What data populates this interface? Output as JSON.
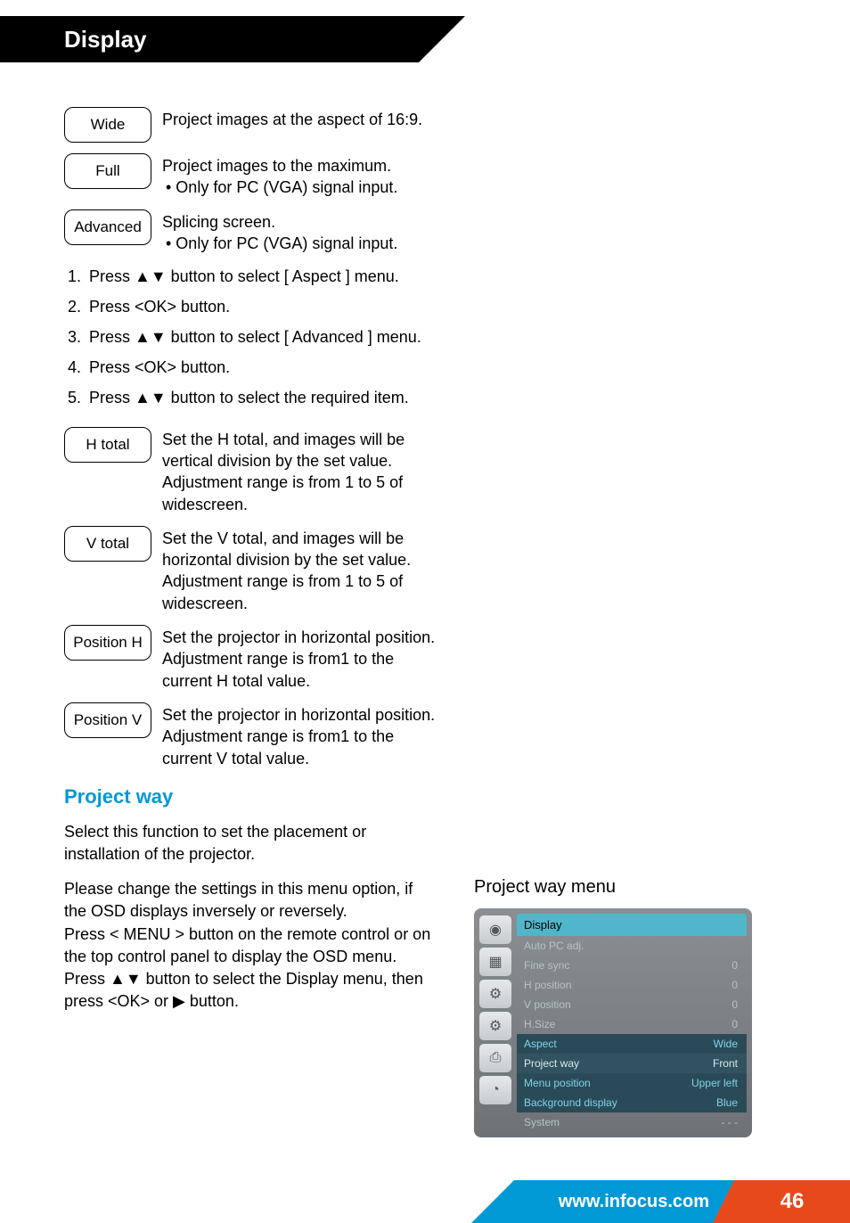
{
  "header": {
    "title": "Display"
  },
  "options_top": [
    {
      "label": "Wide",
      "desc": "Project images at the aspect of 16:9."
    },
    {
      "label": "Full",
      "desc": "Project images to the maximum.",
      "bullet": "Only for PC (VGA) signal input."
    },
    {
      "label": "Advanced",
      "desc": "Splicing screen.",
      "bullet": "Only for PC (VGA) signal input."
    }
  ],
  "steps": [
    "Press ▲▼ button to select [ Aspect ] menu.",
    "Press <OK> button.",
    "Press ▲▼ button to select [ Advanced ] menu.",
    "Press <OK> button.",
    "Press ▲▼ button to select the required item."
  ],
  "options_bottom": [
    {
      "label": "H total",
      "desc": "Set the H total, and images will be vertical division by the set value.\nAdjustment range is from 1 to 5 of widescreen."
    },
    {
      "label": "V total",
      "desc": "Set the V total, and images will be horizontal division by the set value.\nAdjustment range is from 1 to 5 of widescreen."
    },
    {
      "label": "Position H",
      "desc": "Set the projector in horizontal position.\nAdjustment range is from1 to the current H total value."
    },
    {
      "label": "Position V",
      "desc": "Set the projector in horizontal position.\nAdjustment range is from1 to the current V total value."
    }
  ],
  "project_way": {
    "heading": "Project way",
    "intro": "Select this function to set the placement or installation of the projector.",
    "para2": "Please change the settings in this menu option, if the OSD displays inversely or reversely.",
    "para3": "Press < MENU > button on the remote control or on the top control panel to display the OSD menu. Press ▲▼ button to select the Display menu, then press <OK> or ▶ button."
  },
  "menu": {
    "title": "Project way menu",
    "header": "Display",
    "icons": [
      "◉",
      "▦",
      "⚙",
      "⚙",
      "⎙",
      "◔"
    ],
    "rows": [
      {
        "label": "Auto PC adj.",
        "value": "",
        "style": "dim"
      },
      {
        "label": "Fine sync",
        "value": "0",
        "style": "dim"
      },
      {
        "label": "H position",
        "value": "0",
        "style": "dim"
      },
      {
        "label": "V position",
        "value": "0",
        "style": "dim"
      },
      {
        "label": "H.Size",
        "value": "0",
        "style": "dim"
      },
      {
        "label": "Aspect",
        "value": "Wide",
        "style": "dark"
      },
      {
        "label": "Project way",
        "value": "Front",
        "style": "dark2"
      },
      {
        "label": "Menu position",
        "value": "Upper left",
        "style": "dark"
      },
      {
        "label": "Background display",
        "value": "Blue",
        "style": "dark"
      },
      {
        "label": "System",
        "value": "- - -",
        "style": "dim"
      }
    ]
  },
  "footer": {
    "url": "www.infocus.com",
    "page": "46"
  },
  "colors": {
    "accent_blue": "#0099d6",
    "accent_orange": "#e8491b",
    "osd_teal": "#4fb7c9",
    "osd_dark": "#2a4a57"
  }
}
